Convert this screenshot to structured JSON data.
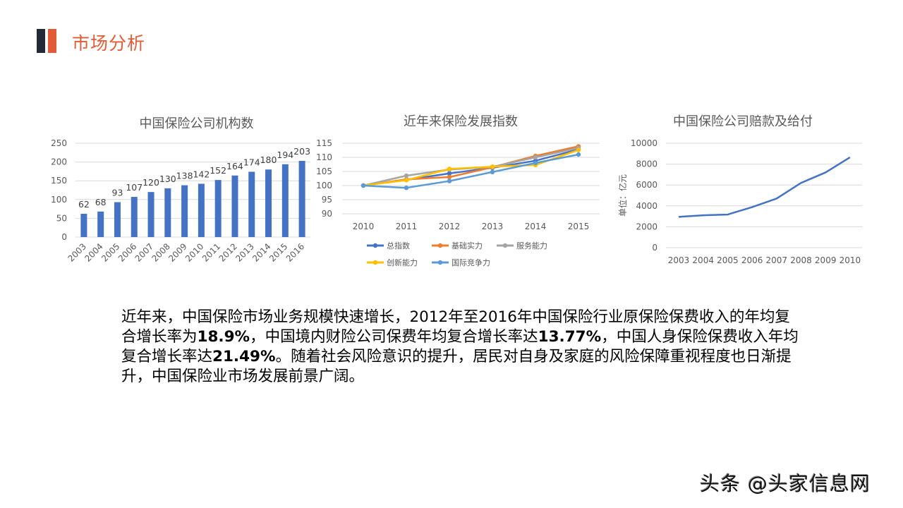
{
  "header": {
    "title": "市场分析",
    "accent_dark": "#222a35",
    "accent_orange": "#e35b36"
  },
  "chart_data": [
    {
      "type": "bar",
      "title": "中国保险公司机构数",
      "categories": [
        "2003",
        "2004",
        "2005",
        "2006",
        "2007",
        "2008",
        "2009",
        "2010",
        "2011",
        "2012",
        "2013",
        "2014",
        "2015",
        "2016"
      ],
      "values": [
        62,
        68,
        93,
        107,
        120,
        130,
        138,
        142,
        152,
        164,
        174,
        180,
        194,
        203
      ],
      "xlabel": "",
      "ylabel": "",
      "ylim": [
        0,
        250
      ],
      "yticks": [
        0,
        50,
        100,
        150,
        200,
        250
      ],
      "grid": true,
      "color": "#4472c4",
      "data_labels": true
    },
    {
      "type": "line",
      "title": "近年来保险发展指数",
      "categories": [
        "2010",
        "2011",
        "2012",
        "2013",
        "2014",
        "2015"
      ],
      "series": [
        {
          "name": "总指数",
          "color": "#4472c4",
          "values": [
            100,
            102.0,
            104.3,
            106.3,
            108.8,
            112.8
          ]
        },
        {
          "name": "基础实力",
          "color": "#ed7d31",
          "values": [
            100,
            102.2,
            103.0,
            106.5,
            110.5,
            113.9
          ]
        },
        {
          "name": "服务能力",
          "color": "#a5a5a5",
          "values": [
            100,
            103.5,
            105.7,
            106.6,
            110.0,
            113.3
          ]
        },
        {
          "name": "创新能力",
          "color": "#ffc000",
          "values": [
            100,
            101.9,
            105.9,
            106.7,
            107.3,
            112.6
          ]
        },
        {
          "name": "国际竞争力",
          "color": "#5b9bd5",
          "values": [
            100,
            99.2,
            101.6,
            104.8,
            108.0,
            111.0
          ]
        }
      ],
      "xlabel": "",
      "ylabel": "",
      "ylim": [
        90,
        115
      ],
      "yticks": [
        90,
        95,
        100,
        105,
        110,
        115
      ],
      "grid": true,
      "legend_position": "bottom"
    },
    {
      "type": "line",
      "title": "中国保险公司赔款及给付",
      "categories": [
        "2003",
        "2004",
        "2005",
        "2006",
        "2007",
        "2008",
        "2009",
        "2010"
      ],
      "values": [
        2950,
        3100,
        3170,
        3880,
        4700,
        6200,
        7200,
        8650
      ],
      "xlabel": "",
      "ylabel": "单位：亿元",
      "ylim": [
        0,
        10000
      ],
      "yticks": [
        0,
        2000,
        4000,
        6000,
        8000,
        10000
      ],
      "grid": true,
      "color": "#4472c4"
    }
  ],
  "paragraph": {
    "segments": [
      {
        "text": "近年来，中国保险市场业务规模快速增长，2012年至2016年中国保险行业原保险保费收入的年均复合增长率为",
        "bold": false
      },
      {
        "text": "18.9%",
        "bold": true
      },
      {
        "text": "，中国境内财险公司保费年均复合增长率达",
        "bold": false
      },
      {
        "text": "13.77%",
        "bold": true
      },
      {
        "text": "，中国人身保险保费收入年均复合增长率达",
        "bold": false
      },
      {
        "text": "21.49%",
        "bold": true
      },
      {
        "text": "。随着社会风险意识的提升，居民对自身及家庭的风险保障重视程度也日渐提升，中国保险业市场发展前景广阔。",
        "bold": false
      }
    ]
  },
  "watermark": {
    "text": "头条 @头家信息网"
  }
}
